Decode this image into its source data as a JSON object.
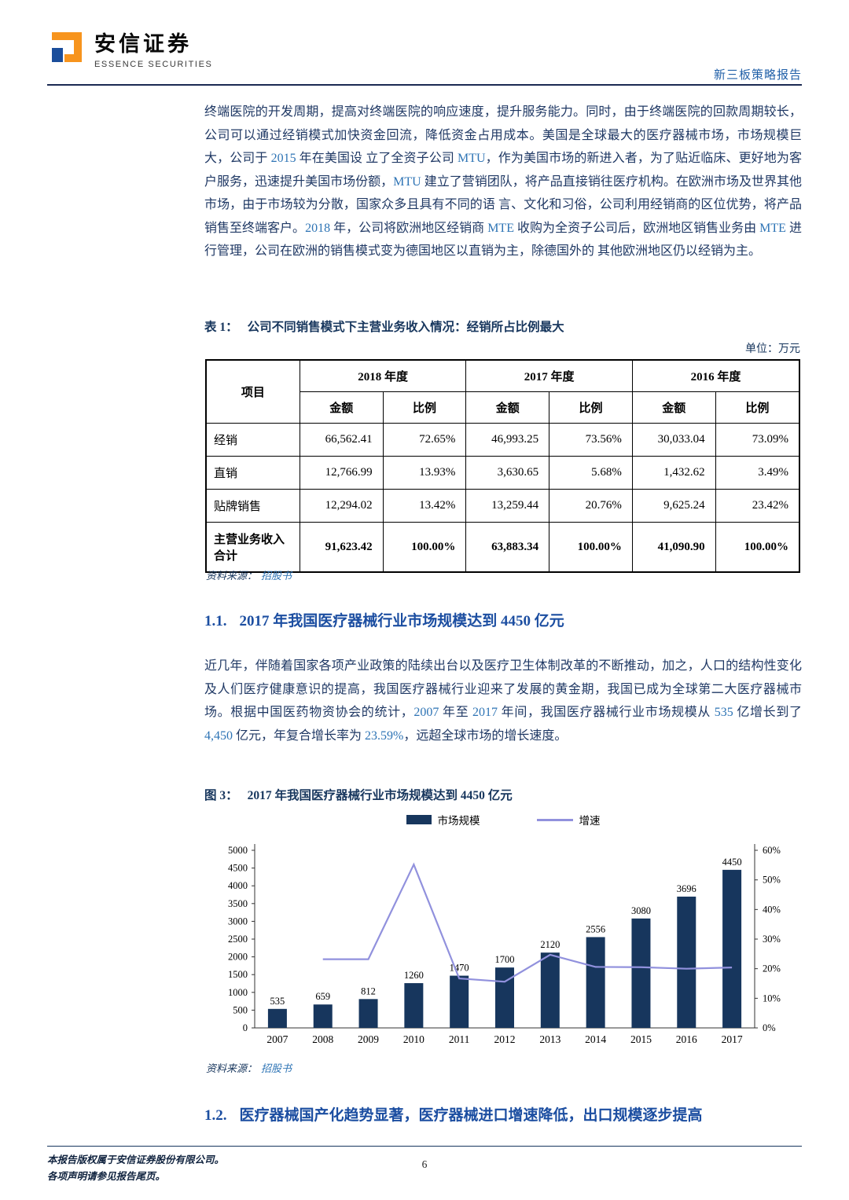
{
  "header": {
    "brand": "安信证券",
    "brand_sub": "ESSENCE SECURITIES",
    "report_type": "新三板策略报告"
  },
  "paragraphs": {
    "p1": [
      {
        "t": "终端医院的开发周期，提高对终端医院的响应速度，提升服务能力。同时，由于终端医院的回款周期较长，公司可以通过经销模式加快资金回流，降低资金占用成本。美国是全球最大的医疗器械市场，市场规模巨大，公司于 ",
        "hl": false
      },
      {
        "t": "2015",
        "hl": true
      },
      {
        "t": " 年在美国设 立了全资子公司 ",
        "hl": false
      },
      {
        "t": "MTU",
        "hl": true
      },
      {
        "t": "，作为美国市场的新进入者，为了贴近临床、更好地为客 户服务，迅速提升美国市场份额，",
        "hl": false
      },
      {
        "t": "MTU",
        "hl": true
      },
      {
        "t": " 建立了营销团队，将产品直接销往医疗机构。在欧洲市场及世界其他市场，由于市场较为分散，国家众多且具有不同的语 言、文化和习俗，公司利用经销商的区位优势，将产品销售至终端客户。",
        "hl": false
      },
      {
        "t": "2018",
        "hl": true
      },
      {
        "t": " 年，公司将欧洲地区经销商 ",
        "hl": false
      },
      {
        "t": "MTE",
        "hl": true
      },
      {
        "t": " 收购为全资子公司后，欧洲地区销售业务由 ",
        "hl": false
      },
      {
        "t": "MTE",
        "hl": true
      },
      {
        "t": " 进行管理，公司在欧洲的销售模式变为德国地区以直销为主，除德国外的 其他欧洲地区仍以经销为主。",
        "hl": false
      }
    ],
    "p2": [
      {
        "t": "近几年，伴随着国家各项产业政策的陆续出台以及医疗卫生体制改革的不断推动，加之，人口的结构性变化及人们医疗健康意识的提高，我国医疗器械行业迎来了发展的黄金期，我国已成为全球第二大医疗器械市场。根据中国医药物资协会的统计，",
        "hl": false
      },
      {
        "t": "2007",
        "hl": true
      },
      {
        "t": " 年至 ",
        "hl": false
      },
      {
        "t": "2017",
        "hl": true
      },
      {
        "t": " 年间，我国医疗器械行业市场规模从 ",
        "hl": false
      },
      {
        "t": "535",
        "hl": true
      },
      {
        "t": " 亿增长到了 ",
        "hl": false
      },
      {
        "t": "4,450",
        "hl": true
      },
      {
        "t": " 亿元，年复合增长率为 ",
        "hl": false
      },
      {
        "t": "23.59%",
        "hl": true
      },
      {
        "t": "，远超全球市场的增长速度。",
        "hl": false
      }
    ]
  },
  "table1": {
    "caption_label": "表 1：",
    "caption": "公司不同销售模式下主营业务收入情况：经销所占比例最大",
    "unit": "单位：万元",
    "header": {
      "item": "项目",
      "years": [
        "2018 年度",
        "2017 年度",
        "2016 年度"
      ],
      "amount": "金额",
      "ratio": "比例"
    },
    "rows": [
      [
        "经销",
        "66,562.41",
        "72.65%",
        "46,993.25",
        "73.56%",
        "30,033.04",
        "73.09%"
      ],
      [
        "直销",
        "12,766.99",
        "13.93%",
        "3,630.65",
        "5.68%",
        "1,432.62",
        "3.49%"
      ],
      [
        "贴牌销售",
        "12,294.02",
        "13.42%",
        "13,259.44",
        "20.76%",
        "9,625.24",
        "23.42%"
      ],
      [
        "主营业务收入合计",
        "91,623.42",
        "100.00%",
        "63,883.34",
        "100.00%",
        "41,090.90",
        "100.00%"
      ]
    ],
    "source_label": "资料来源：",
    "source": "招股书"
  },
  "sections": {
    "s11_num": "1.1.",
    "s11_title": "2017 年我国医疗器械行业市场规模达到 4450 亿元",
    "s12_num": "1.2.",
    "s12_title": "医疗器械国产化趋势显著，医疗器械进口增速降低，出口规模逐步提高"
  },
  "figure": {
    "caption_label": "图 3：",
    "caption": "2017 年我国医疗器械行业市场规模达到 4450 亿元",
    "source_label": "资料来源：",
    "source": "招股书"
  },
  "chart_data": {
    "type": "bar+line",
    "title": "2017 年我国医疗器械行业市场规模达到 4450 亿元",
    "categories": [
      "2007",
      "2008",
      "2009",
      "2010",
      "2011",
      "2012",
      "2013",
      "2014",
      "2015",
      "2016",
      "2017"
    ],
    "series": [
      {
        "name": "市场规模",
        "type": "bar",
        "axis": "left",
        "values": [
          535,
          659,
          812,
          1260,
          1470,
          1700,
          2120,
          2556,
          3080,
          3696,
          4450
        ],
        "color": "#17365d"
      },
      {
        "name": "增速",
        "type": "line",
        "axis": "right",
        "values": [
          null,
          23.2,
          23.2,
          55.2,
          16.7,
          15.6,
          24.7,
          20.6,
          20.5,
          20.0,
          20.4
        ],
        "color": "#9191dd"
      }
    ],
    "left_axis": {
      "min": 0,
      "max": 5000,
      "step": 500
    },
    "right_axis": {
      "min": 0,
      "max": 60,
      "step": 10,
      "suffix": "%"
    },
    "legend_position": "top",
    "grid": false
  },
  "footer": {
    "line1": "本报告版权属于安信证券股份有限公司。",
    "line2": "各项声明请参见报告尾页。",
    "page_number": "6"
  }
}
